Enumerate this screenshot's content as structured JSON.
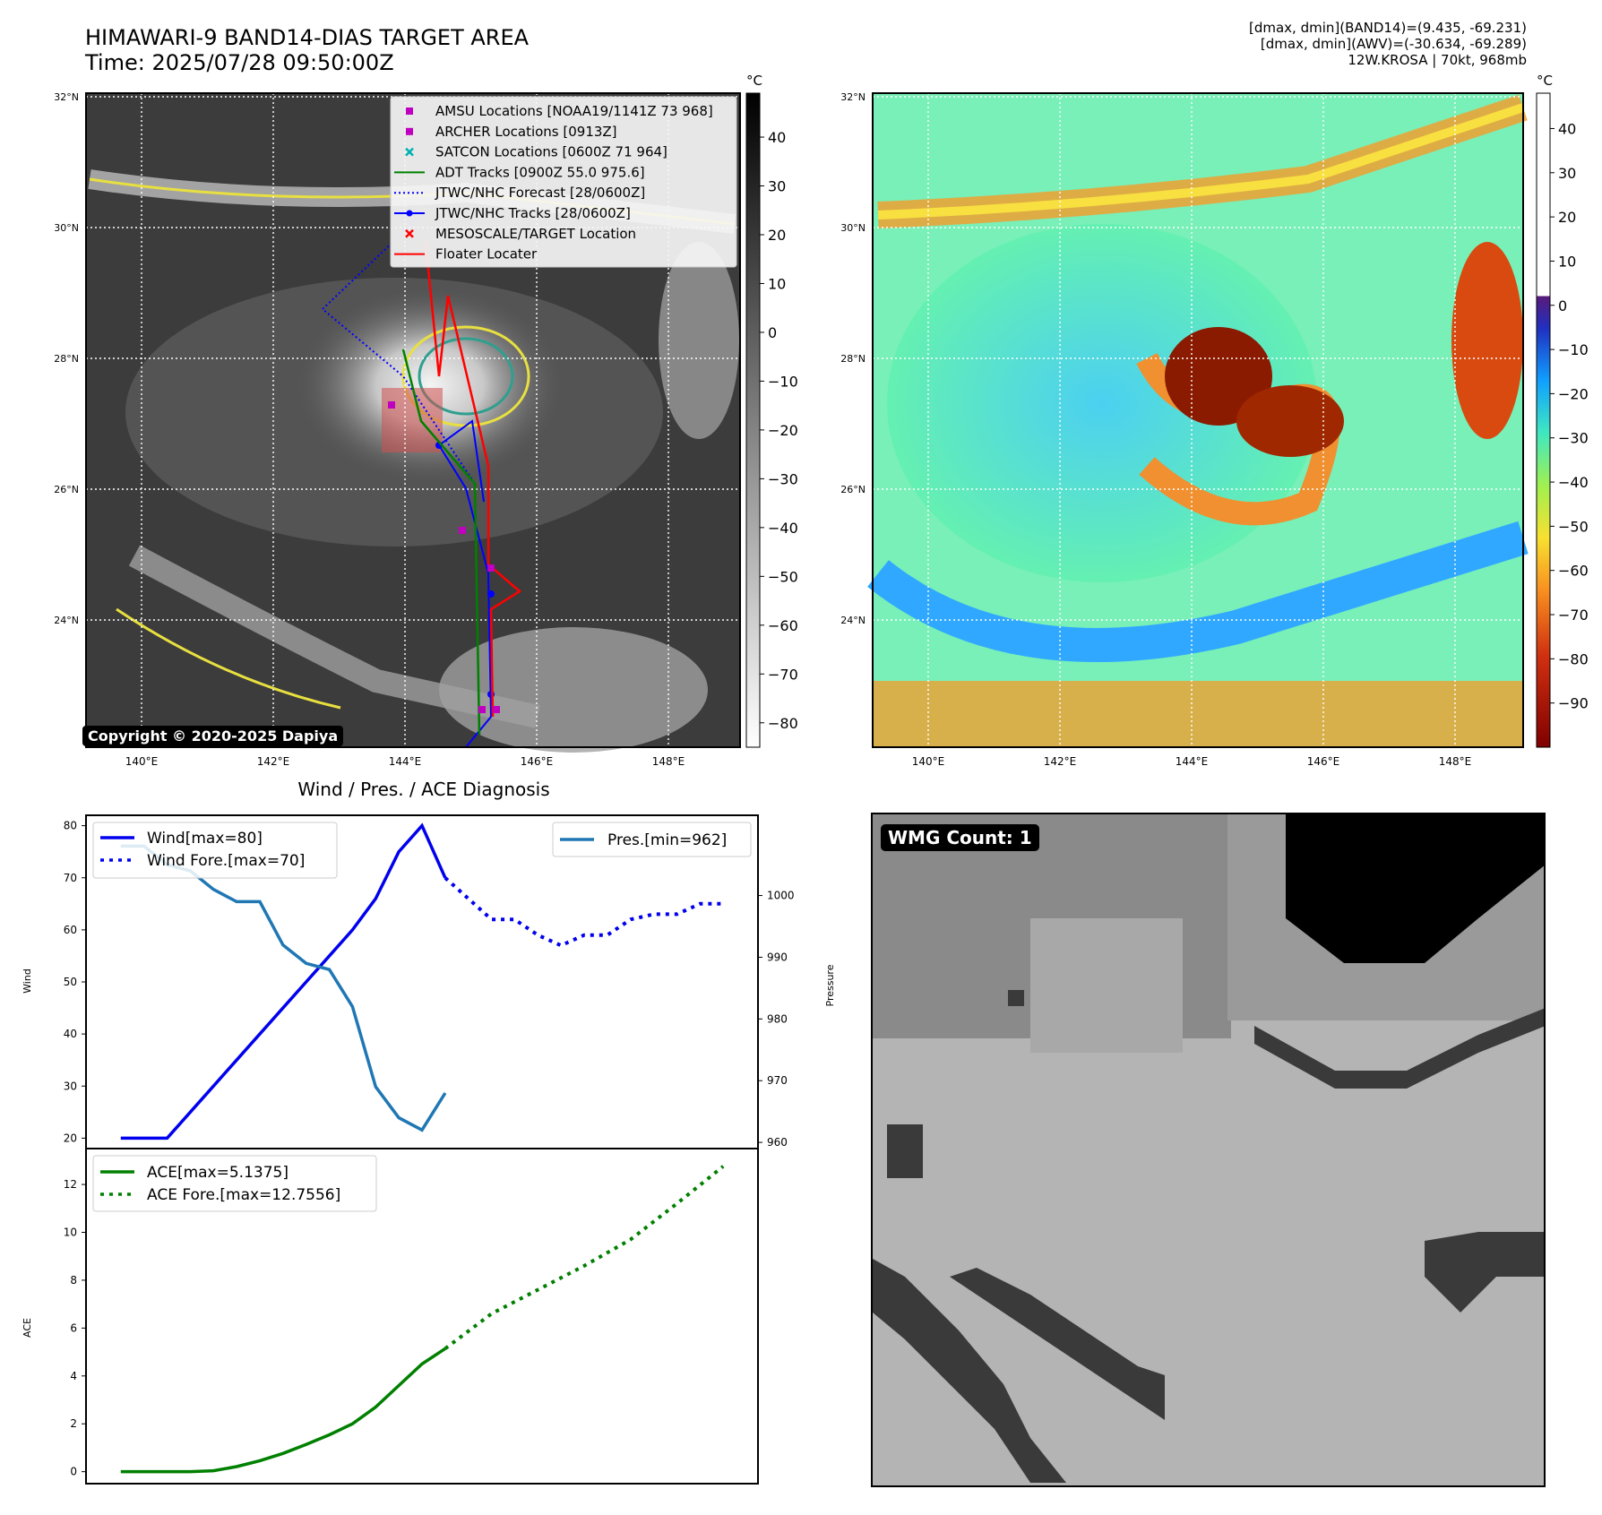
{
  "header": {
    "title_line1": "HIMAWARI-9 BAND14-DIAS TARGET AREA",
    "title_line2": "Time: 2025/07/28 09:50:00Z",
    "info_line1": "[dmax, dmin](BAND14)=(9.435, -69.231)",
    "info_line2": "[dmax, dmin](AWV)=(-30.634, -69.289)",
    "info_line3": "12W.KROSA | 70kt, 968mb"
  },
  "map": {
    "lat_labels": [
      "32°N",
      "30°N",
      "28°N",
      "26°N",
      "24°N"
    ],
    "lon_labels": [
      "140°E",
      "142°E",
      "144°E",
      "146°E",
      "148°E"
    ],
    "copyright": "Copyright © 2020-2025 Dapiya",
    "legend": [
      {
        "label": "AMSU Locations [NOAA19/1141Z 73 968]",
        "color": "#c000c0",
        "marker": "square"
      },
      {
        "label": "ARCHER Locations [0913Z]",
        "color": "#c000c0",
        "marker": "square"
      },
      {
        "label": "SATCON Locations [0600Z 71 964]",
        "color": "#00b0b0",
        "marker": "x"
      },
      {
        "label": "ADT Tracks [0900Z 55.0 975.6]",
        "color": "#008000",
        "marker": "line"
      },
      {
        "label": "JTWC/NHC Forecast [28/0600Z]",
        "color": "#0000ff",
        "marker": "dotted"
      },
      {
        "label": "JTWC/NHC Tracks [28/0600Z]",
        "color": "#0000ff",
        "marker": "line-dot"
      },
      {
        "label": "MESOSCALE/TARGET Location",
        "color": "#ff0000",
        "marker": "x"
      },
      {
        "label": "Floater Locater",
        "color": "#ff0000",
        "marker": "line"
      }
    ]
  },
  "colorbar_ir": {
    "unit": "°C",
    "ticks": [
      "40",
      "30",
      "20",
      "10",
      "0",
      "−10",
      "−20",
      "−30",
      "−40",
      "−50",
      "−60",
      "−70",
      "−80"
    ]
  },
  "colorbar_awv": {
    "unit": "°C",
    "ticks": [
      "40",
      "30",
      "20",
      "10",
      "0",
      "−10",
      "−20",
      "−30",
      "−40",
      "−50",
      "−60",
      "−70",
      "−80",
      "−90"
    ]
  },
  "wmg": {
    "label": "WMG Count: 1"
  },
  "chart_data": [
    {
      "type": "line",
      "title": "Wind / Pres. / ACE Diagnosis",
      "ylabel": "Wind",
      "ylim": [
        18,
        82
      ],
      "y_ticks": [
        "80",
        "70",
        "60",
        "50",
        "40",
        "30",
        "20"
      ],
      "y2label": "Pressure",
      "y2lim": [
        959,
        1013
      ],
      "y2_ticks": [
        "1000",
        "990",
        "980",
        "970",
        "960"
      ],
      "series": [
        {
          "name": "Wind[max=80]",
          "axis": "left",
          "style": "solid",
          "color": "#0000ee",
          "x": [
            0,
            1,
            2,
            3,
            4,
            5,
            6,
            7,
            8,
            9,
            10,
            11,
            12,
            13,
            14
          ],
          "y": [
            20,
            20,
            20,
            25,
            30,
            35,
            40,
            45,
            50,
            55,
            60,
            66,
            75,
            80,
            70
          ]
        },
        {
          "name": "Wind Fore.[max=70]",
          "axis": "left",
          "style": "dotted",
          "color": "#0000ee",
          "x": [
            14,
            15,
            16,
            17,
            18,
            19,
            20,
            21,
            22,
            23,
            24,
            25,
            26
          ],
          "y": [
            70,
            66,
            62,
            62,
            59,
            57,
            59,
            59,
            62,
            63,
            63,
            65,
            65
          ]
        },
        {
          "name": "Pres.[min=962]",
          "axis": "right",
          "style": "solid",
          "color": "#1f77b4",
          "x": [
            0,
            1,
            2,
            3,
            4,
            5,
            6,
            7,
            8,
            9,
            10,
            11,
            12,
            13,
            14
          ],
          "y": [
            1008,
            1008,
            1005,
            1004,
            1001,
            999,
            999,
            992,
            989,
            988,
            982,
            969,
            964,
            962,
            968
          ]
        }
      ]
    },
    {
      "type": "line",
      "ylabel": "ACE",
      "ylim": [
        -0.5,
        13.5
      ],
      "y_ticks": [
        "12",
        "10",
        "8",
        "6",
        "4",
        "2",
        "0"
      ],
      "series": [
        {
          "name": "ACE[max=5.1375]",
          "style": "solid",
          "color": "#008000",
          "x": [
            0,
            1,
            2,
            3,
            4,
            5,
            6,
            7,
            8,
            9,
            10,
            11,
            12,
            13,
            14
          ],
          "y": [
            0,
            0,
            0,
            0,
            0.04,
            0.21,
            0.46,
            0.76,
            1.14,
            1.54,
            2.0,
            2.7,
            3.6,
            4.5,
            5.14
          ]
        },
        {
          "name": "ACE Fore.[max=12.7556]",
          "style": "dotted",
          "color": "#008000",
          "x": [
            14,
            16,
            18,
            20,
            22,
            24,
            26
          ],
          "y": [
            5.14,
            6.6,
            7.6,
            8.6,
            9.7,
            11.2,
            12.76
          ]
        }
      ]
    }
  ]
}
